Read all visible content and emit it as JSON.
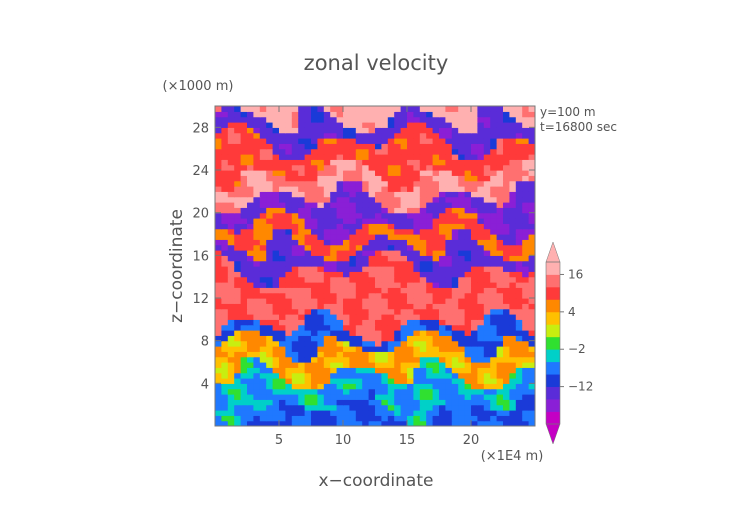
{
  "chart_data": {
    "type": "heatmap",
    "title": "zonal velocity",
    "xlabel": "x−coordinate",
    "ylabel": "z−coordinate",
    "x_unit_label": "(×1E4 m)",
    "y_unit_label": "(×1000 m)",
    "annotations": [
      "y=100 m",
      "t=16800 sec"
    ],
    "xlim": [
      0,
      25
    ],
    "ylim": [
      0,
      30
    ],
    "x_ticks": [
      5,
      10,
      15,
      20
    ],
    "y_ticks": [
      4,
      8,
      12,
      16,
      20,
      24,
      28
    ],
    "colorbar": {
      "ticks": [
        16,
        4,
        -2,
        -12
      ],
      "levels": [
        -20,
        -16,
        -12,
        -8,
        -4,
        -2,
        0,
        2,
        4,
        8,
        12,
        16,
        20
      ],
      "colors": [
        "#c400c4",
        "#8a1fd6",
        "#5a2cd8",
        "#1a3ad8",
        "#1f78ff",
        "#00d0c8",
        "#30e030",
        "#c8ee10",
        "#ffc000",
        "#ff8800",
        "#ff3a3a",
        "#ff7070",
        "#ffb0b0"
      ],
      "extend": "both"
    },
    "bands": [
      {
        "z": [
          0,
          1.5
        ],
        "value": -8
      },
      {
        "z": [
          1.5,
          4.5
        ],
        "value": -4
      },
      {
        "z": [
          4.5,
          7.5
        ],
        "value": 4
      },
      {
        "z": [
          7.5,
          9
        ],
        "value": -8
      },
      {
        "z": [
          9,
          14.5
        ],
        "value": 12
      },
      {
        "z": [
          14.5,
          16.5
        ],
        "value": -14
      },
      {
        "z": [
          16.5,
          18.5
        ],
        "value": 8
      },
      {
        "z": [
          18.5,
          21
        ],
        "value": -16
      },
      {
        "z": [
          21,
          23.5
        ],
        "value": 16
      },
      {
        "z": [
          23.5,
          26.5
        ],
        "value": 10
      },
      {
        "z": [
          26.5,
          28.5
        ],
        "value": -14
      },
      {
        "z": [
          28.5,
          30
        ],
        "value": 18
      }
    ]
  }
}
